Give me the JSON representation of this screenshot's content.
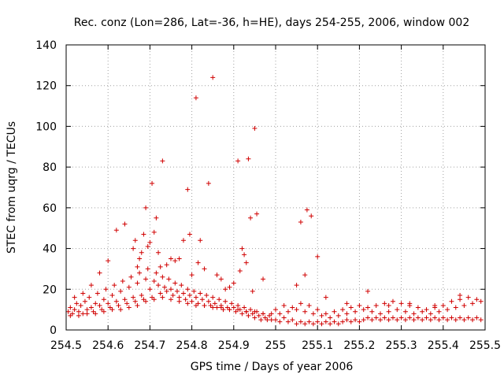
{
  "chart_data": {
    "type": "scatter",
    "title": "Rec. conz (Lon=286, Lat=-36, h=HE), days 254-255, 2006, window 002",
    "xlabel": "GPS time / Days of year 2006",
    "ylabel": "STEC from uqrg / TECUs",
    "xlim": [
      254.5,
      255.5
    ],
    "ylim": [
      0,
      140
    ],
    "xticks": [
      254.5,
      254.6,
      254.7,
      254.8,
      254.9,
      255,
      255.1,
      255.2,
      255.3,
      255.4,
      255.5
    ],
    "xtick_labels": [
      "254.5",
      "254.6",
      "254.7",
      "254.8",
      "254.9",
      "255",
      "255.1",
      "255.2",
      "255.3",
      "255.4",
      "255.5"
    ],
    "yticks": [
      0,
      20,
      40,
      60,
      80,
      100,
      120,
      140
    ],
    "ytick_labels": [
      "0",
      "20",
      "40",
      "60",
      "80",
      "100",
      "120",
      "140"
    ],
    "grid": true,
    "marker_color": "#d00000",
    "marker": "plus",
    "series": [
      {
        "points": [
          [
            254.505,
            9
          ],
          [
            254.51,
            11
          ],
          [
            254.515,
            8
          ],
          [
            254.52,
            10
          ],
          [
            254.525,
            13
          ],
          [
            254.53,
            9
          ],
          [
            254.535,
            12
          ],
          [
            254.54,
            8
          ],
          [
            254.545,
            14
          ],
          [
            254.55,
            10
          ],
          [
            254.555,
            16
          ],
          [
            254.56,
            11
          ],
          [
            254.565,
            9
          ],
          [
            254.57,
            13
          ],
          [
            254.575,
            18
          ],
          [
            254.58,
            12
          ],
          [
            254.585,
            10
          ],
          [
            254.59,
            15
          ],
          [
            254.595,
            20
          ],
          [
            254.6,
            13
          ],
          [
            254.605,
            11
          ],
          [
            254.61,
            17
          ],
          [
            254.615,
            22
          ],
          [
            254.62,
            14
          ],
          [
            254.625,
            12
          ],
          [
            254.63,
            19
          ],
          [
            254.635,
            24
          ],
          [
            254.64,
            15
          ],
          [
            254.645,
            13
          ],
          [
            254.65,
            21
          ],
          [
            254.655,
            26
          ],
          [
            254.66,
            16
          ],
          [
            254.665,
            14
          ],
          [
            254.67,
            23
          ],
          [
            254.675,
            28
          ],
          [
            254.68,
            17
          ],
          [
            254.685,
            15
          ],
          [
            254.69,
            25
          ],
          [
            254.695,
            30
          ],
          [
            254.7,
            20
          ],
          [
            254.705,
            16
          ],
          [
            254.71,
            24
          ],
          [
            254.715,
            28
          ],
          [
            254.72,
            22
          ],
          [
            254.725,
            18
          ],
          [
            254.73,
            26
          ],
          [
            254.735,
            21
          ],
          [
            254.74,
            19
          ],
          [
            254.745,
            25
          ],
          [
            254.75,
            20
          ],
          [
            254.755,
            17
          ],
          [
            254.76,
            23
          ],
          [
            254.765,
            19
          ],
          [
            254.77,
            16
          ],
          [
            254.775,
            22
          ],
          [
            254.78,
            18
          ],
          [
            254.785,
            15
          ],
          [
            254.79,
            20
          ],
          [
            254.795,
            17
          ],
          [
            254.8,
            14
          ],
          [
            254.805,
            19
          ],
          [
            254.81,
            16
          ],
          [
            254.815,
            13
          ],
          [
            254.82,
            18
          ],
          [
            254.825,
            15
          ],
          [
            254.83,
            12
          ],
          [
            254.835,
            17
          ],
          [
            254.84,
            14
          ],
          [
            254.845,
            12
          ],
          [
            254.85,
            16
          ],
          [
            254.855,
            13
          ],
          [
            254.86,
            11
          ],
          [
            254.865,
            15
          ],
          [
            254.87,
            12
          ],
          [
            254.875,
            10
          ],
          [
            254.88,
            14
          ],
          [
            254.885,
            11
          ],
          [
            254.89,
            10
          ],
          [
            254.895,
            13
          ],
          [
            254.9,
            11
          ],
          [
            254.905,
            9
          ],
          [
            254.91,
            12
          ],
          [
            254.915,
            10
          ],
          [
            254.92,
            8
          ],
          [
            254.925,
            11
          ],
          [
            254.93,
            9
          ],
          [
            254.935,
            7
          ],
          [
            254.94,
            10
          ],
          [
            254.945,
            8
          ],
          [
            254.95,
            6
          ],
          [
            254.955,
            9
          ],
          [
            254.96,
            7
          ],
          [
            254.965,
            5
          ],
          [
            254.97,
            8
          ],
          [
            254.975,
            6
          ],
          [
            254.98,
            5
          ],
          [
            254.985,
            7
          ],
          [
            254.99,
            5
          ],
          [
            255.0,
            5
          ],
          [
            255.01,
            4
          ],
          [
            255.02,
            6
          ],
          [
            255.03,
            4
          ],
          [
            255.04,
            5
          ],
          [
            255.05,
            3
          ],
          [
            255.06,
            4
          ],
          [
            255.07,
            3
          ],
          [
            255.08,
            4
          ],
          [
            255.09,
            3
          ],
          [
            255.1,
            4
          ],
          [
            255.11,
            3
          ],
          [
            255.12,
            4
          ],
          [
            255.13,
            3
          ],
          [
            255.14,
            4
          ],
          [
            255.15,
            3
          ],
          [
            255.16,
            4
          ],
          [
            255.17,
            5
          ],
          [
            255.18,
            4
          ],
          [
            255.19,
            5
          ],
          [
            255.2,
            4
          ],
          [
            255.21,
            5
          ],
          [
            255.22,
            6
          ],
          [
            255.23,
            5
          ],
          [
            255.24,
            6
          ],
          [
            255.25,
            5
          ],
          [
            255.26,
            6
          ],
          [
            255.27,
            5
          ],
          [
            255.28,
            6
          ],
          [
            255.29,
            5
          ],
          [
            255.3,
            6
          ],
          [
            255.31,
            5
          ],
          [
            255.32,
            6
          ],
          [
            255.33,
            5
          ],
          [
            255.34,
            6
          ],
          [
            255.35,
            5
          ],
          [
            255.36,
            6
          ],
          [
            255.37,
            5
          ],
          [
            255.38,
            6
          ],
          [
            255.39,
            5
          ],
          [
            255.4,
            6
          ],
          [
            255.41,
            5
          ],
          [
            255.42,
            6
          ],
          [
            255.43,
            5
          ],
          [
            255.44,
            6
          ],
          [
            255.45,
            5
          ],
          [
            255.46,
            6
          ],
          [
            255.47,
            5
          ],
          [
            255.48,
            6
          ],
          [
            255.49,
            5
          ],
          [
            254.51,
            7
          ],
          [
            254.53,
            7
          ],
          [
            254.55,
            8
          ],
          [
            254.57,
            8
          ],
          [
            254.59,
            9
          ],
          [
            254.61,
            10
          ],
          [
            254.63,
            10
          ],
          [
            254.65,
            11
          ],
          [
            254.67,
            12
          ],
          [
            254.69,
            14
          ],
          [
            254.71,
            15
          ],
          [
            254.73,
            16
          ],
          [
            254.75,
            15
          ],
          [
            254.77,
            14
          ],
          [
            254.79,
            13
          ],
          [
            254.81,
            12
          ],
          [
            254.83,
            12
          ],
          [
            254.85,
            11
          ],
          [
            254.87,
            11
          ],
          [
            254.89,
            10
          ],
          [
            254.91,
            10
          ],
          [
            254.93,
            9
          ],
          [
            254.95,
            9
          ],
          [
            254.97,
            8
          ],
          [
            254.99,
            8
          ],
          [
            255.01,
            8
          ],
          [
            255.03,
            9
          ],
          [
            255.05,
            10
          ],
          [
            255.07,
            9
          ],
          [
            255.09,
            8
          ],
          [
            255.11,
            7
          ],
          [
            255.13,
            6
          ],
          [
            255.15,
            7
          ],
          [
            255.17,
            8
          ],
          [
            255.19,
            9
          ],
          [
            255.21,
            10
          ],
          [
            255.23,
            9
          ],
          [
            255.25,
            8
          ],
          [
            255.27,
            9
          ],
          [
            255.29,
            10
          ],
          [
            255.31,
            9
          ],
          [
            255.33,
            8
          ],
          [
            255.35,
            9
          ],
          [
            255.37,
            8
          ],
          [
            255.39,
            9
          ],
          [
            255.41,
            10
          ],
          [
            255.43,
            11
          ],
          [
            255.45,
            12
          ],
          [
            255.47,
            13
          ],
          [
            255.49,
            14
          ],
          [
            255.0,
            10
          ],
          [
            255.02,
            12
          ],
          [
            255.04,
            11
          ],
          [
            255.06,
            13
          ],
          [
            255.08,
            12
          ],
          [
            255.1,
            10
          ],
          [
            255.12,
            8
          ],
          [
            255.14,
            9
          ],
          [
            255.16,
            10
          ],
          [
            255.18,
            11
          ],
          [
            255.2,
            12
          ],
          [
            255.22,
            11
          ],
          [
            255.24,
            12
          ],
          [
            255.26,
            13
          ],
          [
            255.28,
            14
          ],
          [
            255.3,
            13
          ],
          [
            255.32,
            12
          ],
          [
            255.34,
            11
          ],
          [
            255.36,
            10
          ],
          [
            255.38,
            11
          ],
          [
            255.4,
            12
          ],
          [
            255.42,
            14
          ],
          [
            255.44,
            15
          ],
          [
            255.46,
            16
          ],
          [
            255.48,
            15
          ],
          [
            254.52,
            16
          ],
          [
            254.54,
            18
          ],
          [
            254.56,
            22
          ],
          [
            254.58,
            28
          ],
          [
            254.6,
            34
          ],
          [
            254.62,
            49
          ],
          [
            254.64,
            52
          ],
          [
            254.66,
            40
          ],
          [
            254.665,
            44
          ],
          [
            254.67,
            31
          ],
          [
            254.675,
            35
          ],
          [
            254.68,
            38
          ],
          [
            254.685,
            47
          ],
          [
            254.69,
            60
          ],
          [
            254.695,
            41
          ],
          [
            254.7,
            43
          ],
          [
            254.705,
            72
          ],
          [
            254.71,
            48
          ],
          [
            254.715,
            55
          ],
          [
            254.72,
            38
          ],
          [
            254.725,
            31
          ],
          [
            254.73,
            83
          ],
          [
            254.74,
            32
          ],
          [
            254.75,
            35
          ],
          [
            254.76,
            34
          ],
          [
            254.77,
            35
          ],
          [
            254.78,
            44
          ],
          [
            254.79,
            69
          ],
          [
            254.795,
            47
          ],
          [
            254.8,
            27
          ],
          [
            254.81,
            114
          ],
          [
            254.815,
            33
          ],
          [
            254.82,
            44
          ],
          [
            254.83,
            30
          ],
          [
            254.84,
            72
          ],
          [
            254.85,
            124
          ],
          [
            254.86,
            27
          ],
          [
            254.87,
            25
          ],
          [
            254.88,
            20
          ],
          [
            254.89,
            21
          ],
          [
            254.9,
            23
          ],
          [
            254.91,
            83
          ],
          [
            254.915,
            29
          ],
          [
            254.92,
            40
          ],
          [
            254.925,
            37
          ],
          [
            254.93,
            33
          ],
          [
            254.935,
            84
          ],
          [
            254.94,
            55
          ],
          [
            254.945,
            19
          ],
          [
            254.95,
            99
          ],
          [
            254.955,
            57
          ],
          [
            254.97,
            25
          ],
          [
            255.05,
            22
          ],
          [
            255.06,
            53
          ],
          [
            255.07,
            27
          ],
          [
            255.075,
            59
          ],
          [
            255.085,
            56
          ],
          [
            255.1,
            36
          ],
          [
            255.12,
            16
          ],
          [
            255.17,
            13
          ],
          [
            255.22,
            19
          ],
          [
            255.27,
            12
          ],
          [
            255.32,
            13
          ],
          [
            255.38,
            12
          ],
          [
            255.44,
            17
          ]
        ]
      }
    ]
  }
}
